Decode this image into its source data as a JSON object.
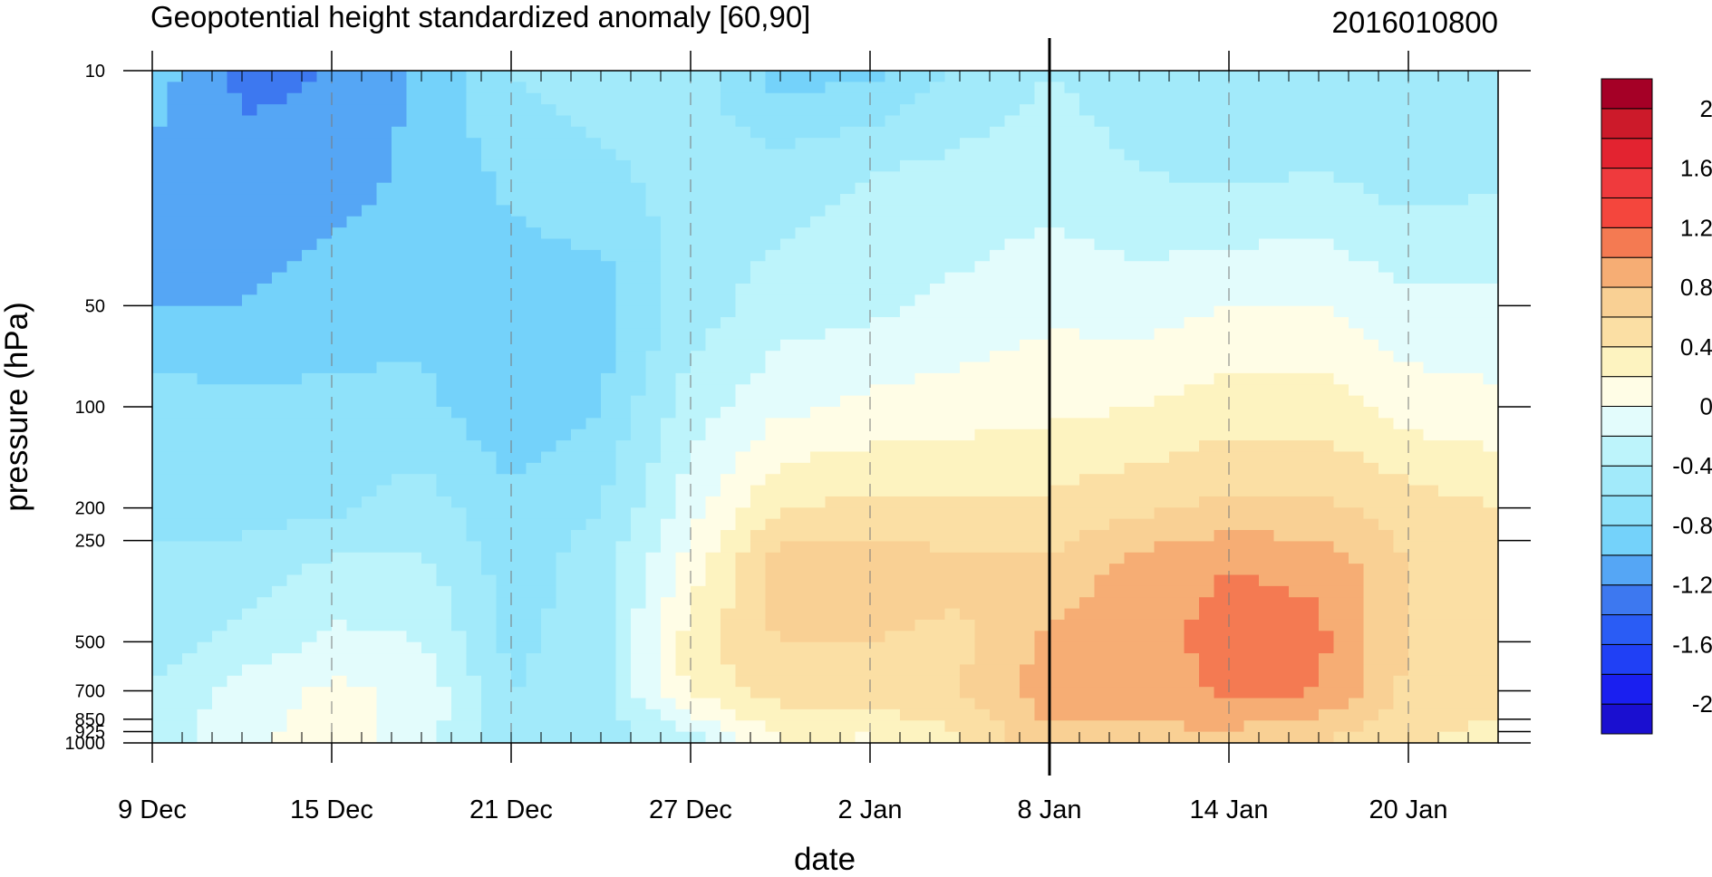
{
  "chart_data": {
    "type": "heatmap",
    "title": "Geopotential height standardized anomaly [60,90]",
    "timestamp": "2016010800",
    "xlabel": "date",
    "ylabel": "pressure (hPa)",
    "x_tick_labels": [
      "9 Dec",
      "15 Dec",
      "21 Dec",
      "27 Dec",
      "2 Jan",
      "8 Jan",
      "14 Jan",
      "20 Jan"
    ],
    "y_tick_labels": [
      "10",
      "50",
      "100",
      "200",
      "250",
      "500",
      "700",
      "850",
      "925",
      "1000"
    ],
    "y_axis_scale": "log",
    "y_axis_reversed": true,
    "xlim": [
      "9 Dec",
      "23 Jan"
    ],
    "ylim": [
      1000,
      10
    ],
    "current_time_marker": "8 Jan",
    "colorbar": {
      "levels": [
        -2.2,
        -2,
        -1.8,
        -1.6,
        -1.4,
        -1.2,
        -1,
        -0.8,
        -0.6,
        -0.4,
        -0.2,
        0,
        0.2,
        0.4,
        0.6,
        0.8,
        1,
        1.2,
        1.4,
        1.6,
        1.8,
        2,
        2.2
      ],
      "labels": [
        "2",
        "1.6",
        "1.2",
        "0.8",
        "0.4",
        "0",
        "-0.4",
        "-0.8",
        "-1.2",
        "-1.6",
        "-2"
      ],
      "colors": [
        "#1a0fd0",
        "#1a1ff0",
        "#2040f5",
        "#2a5cf5",
        "#3d78f0",
        "#55a6f5",
        "#74d2fa",
        "#8fe2fa",
        "#a2eafa",
        "#bdf4fb",
        "#e3fcfc",
        "#fffde6",
        "#fdf3c0",
        "#fbdfa4",
        "#f9d094",
        "#f6ad74",
        "#f47a52",
        "#f4463d",
        "#ef3a3d",
        "#e32330",
        "#cc1a2a",
        "#a50026"
      ]
    },
    "grid": {
      "times": [
        "9 Dec",
        "12 Dec",
        "15 Dec",
        "18 Dec",
        "21 Dec",
        "24 Dec",
        "27 Dec",
        "30 Dec",
        "2 Jan",
        "5 Jan",
        "8 Jan",
        "11 Jan",
        "14 Jan",
        "17 Jan",
        "20 Jan",
        "23 Jan"
      ],
      "pressures": [
        10,
        20,
        50,
        100,
        200,
        300,
        500,
        700,
        1000
      ],
      "values": [
        [
          -0.9,
          -1.05,
          -1.0,
          -0.7,
          -0.6,
          -0.6,
          -0.5,
          -0.4,
          -0.3
        ],
        [
          -1.25,
          -1.15,
          -1.0,
          -0.75,
          -0.7,
          -0.5,
          -0.35,
          -0.1,
          -0.05
        ],
        [
          -1.2,
          -1.1,
          -0.9,
          -0.75,
          -0.65,
          -0.35,
          -0.15,
          0.05,
          0.1
        ],
        [
          -0.95,
          -0.95,
          -0.85,
          -0.75,
          -0.5,
          -0.35,
          -0.2,
          -0.05,
          -0.1
        ],
        [
          -0.6,
          -0.75,
          -0.9,
          -0.95,
          -0.75,
          -0.7,
          -0.65,
          -0.6,
          -0.55
        ],
        [
          -0.5,
          -0.65,
          -0.9,
          -0.8,
          -0.6,
          -0.5,
          -0.5,
          -0.5,
          -0.5
        ],
        [
          -0.5,
          -0.5,
          -0.5,
          -0.3,
          -0.1,
          0.1,
          0.3,
          0.25,
          -0.3
        ],
        [
          -0.9,
          -0.5,
          -0.3,
          -0.05,
          0.4,
          0.75,
          0.6,
          0.5,
          0.2
        ],
        [
          -0.85,
          -0.4,
          -0.25,
          0.05,
          0.45,
          0.75,
          0.6,
          0.55,
          0.15
        ],
        [
          -0.55,
          -0.35,
          -0.15,
          0.1,
          0.45,
          0.65,
          0.55,
          0.6,
          0.35
        ],
        [
          -0.4,
          -0.3,
          -0.05,
          0.15,
          0.45,
          0.65,
          0.85,
          0.9,
          0.75
        ],
        [
          -0.5,
          -0.4,
          -0.1,
          0.2,
          0.55,
          0.9,
          0.9,
          0.85,
          0.75
        ],
        [
          -0.55,
          -0.45,
          0.0,
          0.3,
          0.65,
          1.0,
          1.1,
          1.05,
          0.7
        ],
        [
          -0.4,
          -0.4,
          0.0,
          0.3,
          0.65,
          0.95,
          1.05,
          1.0,
          0.6
        ],
        [
          -0.55,
          -0.5,
          -0.15,
          0.1,
          0.5,
          0.6,
          0.6,
          0.55,
          0.4
        ],
        [
          -0.55,
          -0.45,
          -0.15,
          0.05,
          0.4,
          0.45,
          0.45,
          0.45,
          0.35
        ]
      ]
    }
  }
}
